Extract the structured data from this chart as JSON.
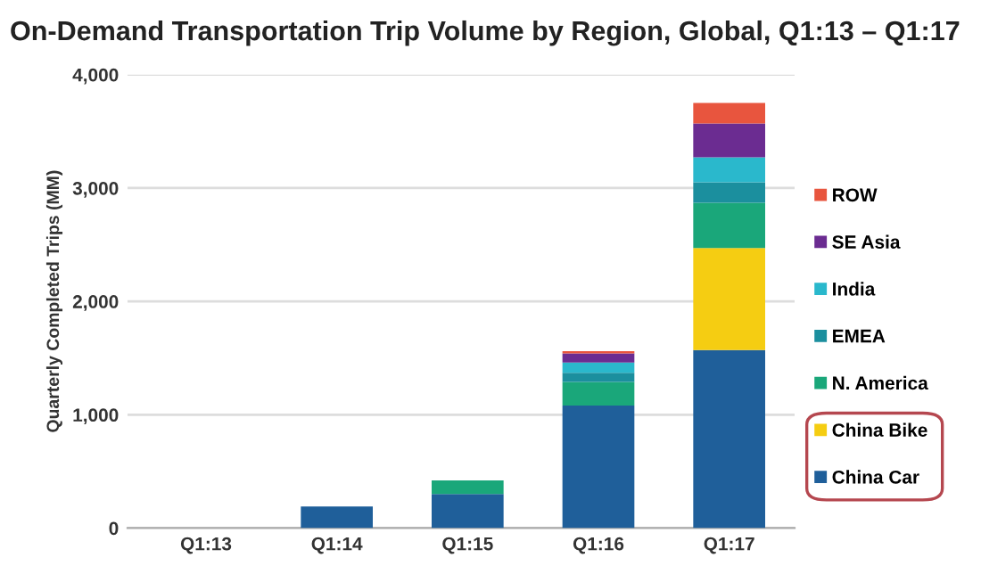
{
  "chart_data": {
    "type": "bar",
    "title": "On-Demand Transportation Trip Volume by Region, Global, Q1:13 – Q1:17",
    "ylabel": "Quarterly Completed Trips (MM)",
    "categories": [
      "Q1:13",
      "Q1:14",
      "Q1:15",
      "Q1:16",
      "Q1:17"
    ],
    "series": [
      {
        "name": "China Car",
        "color": "#1f5f9a",
        "values": [
          0,
          190,
          300,
          1080,
          1570
        ]
      },
      {
        "name": "China Bike",
        "color": "#f5cd12",
        "values": [
          0,
          0,
          0,
          0,
          900
        ]
      },
      {
        "name": "N. America",
        "color": "#1aa77a",
        "values": [
          0,
          0,
          120,
          210,
          400
        ]
      },
      {
        "name": "EMEA",
        "color": "#1b8f9e",
        "values": [
          0,
          0,
          0,
          80,
          180
        ]
      },
      {
        "name": "India",
        "color": "#2ab8cc",
        "values": [
          0,
          0,
          0,
          90,
          220
        ]
      },
      {
        "name": "SE Asia",
        "color": "#6b2c91",
        "values": [
          0,
          0,
          0,
          80,
          300
        ]
      },
      {
        "name": "ROW",
        "color": "#e8553e",
        "values": [
          0,
          0,
          0,
          20,
          180
        ]
      }
    ],
    "stacked": true,
    "ylim": [
      0,
      4000
    ],
    "yticks": [
      {
        "value": 0,
        "label": "0"
      },
      {
        "value": 1000,
        "label": "1,000"
      },
      {
        "value": 2000,
        "label": "2,000"
      },
      {
        "value": 3000,
        "label": "3,000"
      },
      {
        "value": 4000,
        "label": "4,000"
      }
    ],
    "grid": "y",
    "legend": "right"
  }
}
